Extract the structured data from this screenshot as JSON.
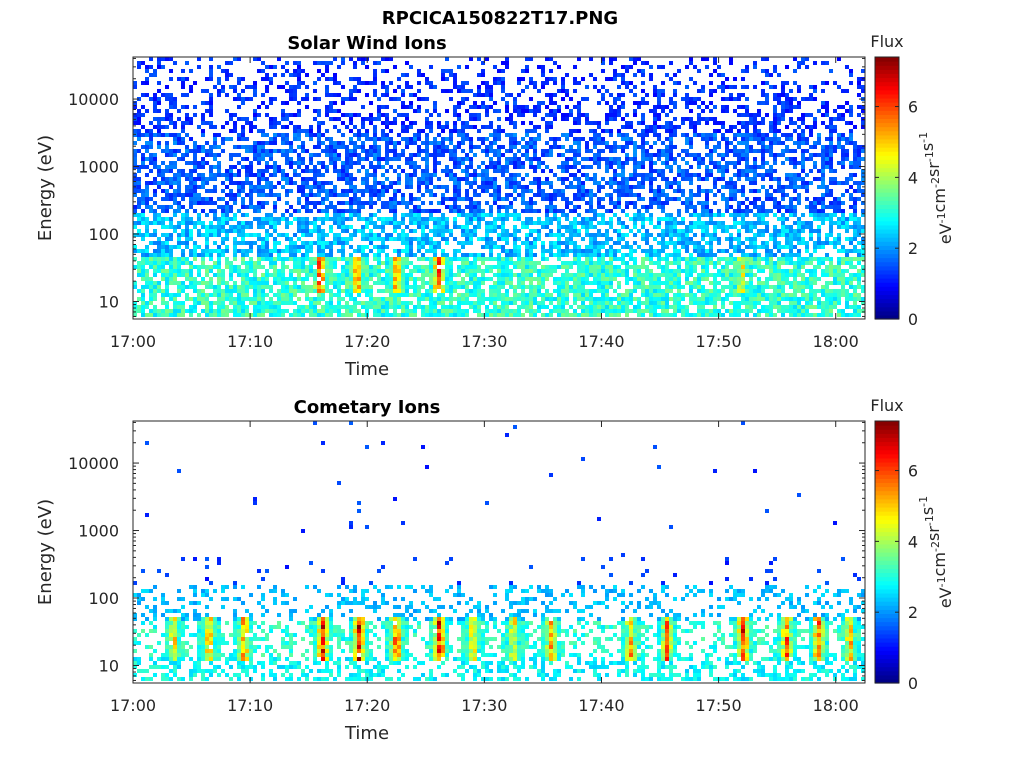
{
  "figure": {
    "title": "RPCICA150822T17.PNG"
  },
  "chart_data": [
    {
      "type": "heatmap",
      "title": "Solar Wind Ions",
      "xlabel": "Time",
      "ylabel": "Energy (eV)",
      "x_ticks": [
        "17:00",
        "17:10",
        "17:20",
        "17:30",
        "17:40",
        "17:50",
        "18:00"
      ],
      "x_range_minutes": [
        0,
        62.5
      ],
      "y_scale": "log",
      "y_ticks": [
        {
          "value": 10,
          "label": "10"
        },
        {
          "value": 100,
          "label": "100"
        },
        {
          "value": 1000,
          "label": "1000"
        },
        {
          "value": 10000,
          "label": "10000"
        }
      ],
      "y_range": [
        5.5,
        42000
      ],
      "colorbar": {
        "title": "Flux",
        "label": "eV-1cm-2sr-1s-1",
        "range": [
          0,
          7.4
        ],
        "ticks": [
          0,
          2,
          4,
          6
        ],
        "colormap": "jet"
      },
      "bursts": [
        {
          "t_min": 16.0,
          "level": 6.8
        },
        {
          "t_min": 19.1,
          "level": 6.4
        },
        {
          "t_min": 22.5,
          "level": 6.2
        },
        {
          "t_min": 26.1,
          "level": 7.0
        },
        {
          "t_min": 52.0,
          "level": 5.4
        }
      ]
    },
    {
      "type": "heatmap",
      "title": "Cometary Ions",
      "xlabel": "Time",
      "ylabel": "Energy (eV)",
      "x_ticks": [
        "17:00",
        "17:10",
        "17:20",
        "17:30",
        "17:40",
        "17:50",
        "18:00"
      ],
      "x_range_minutes": [
        0,
        62.5
      ],
      "y_scale": "log",
      "y_ticks": [
        {
          "value": 10,
          "label": "10"
        },
        {
          "value": 100,
          "label": "100"
        },
        {
          "value": 1000,
          "label": "1000"
        },
        {
          "value": 10000,
          "label": "10000"
        }
      ],
      "y_range": [
        5.5,
        42000
      ],
      "colorbar": {
        "title": "Flux",
        "label": "eV-1cm-2sr-1s-1",
        "range": [
          0,
          7.4
        ],
        "ticks": [
          0,
          2,
          4,
          6
        ],
        "colormap": "jet"
      },
      "bursts": [
        {
          "t_min": 3.5,
          "level": 5.6
        },
        {
          "t_min": 6.5,
          "level": 6.0
        },
        {
          "t_min": 9.5,
          "level": 6.4
        },
        {
          "t_min": 16.2,
          "level": 7.1
        },
        {
          "t_min": 19.3,
          "level": 7.2
        },
        {
          "t_min": 22.5,
          "level": 6.8
        },
        {
          "t_min": 26.2,
          "level": 7.4
        },
        {
          "t_min": 29.0,
          "level": 5.8
        },
        {
          "t_min": 32.5,
          "level": 5.6
        },
        {
          "t_min": 35.7,
          "level": 6.1
        },
        {
          "t_min": 42.5,
          "level": 6.0
        },
        {
          "t_min": 45.6,
          "level": 6.3
        },
        {
          "t_min": 52.1,
          "level": 7.0
        },
        {
          "t_min": 55.8,
          "level": 6.5
        },
        {
          "t_min": 58.5,
          "level": 6.7
        },
        {
          "t_min": 61.2,
          "level": 6.0
        }
      ]
    }
  ]
}
